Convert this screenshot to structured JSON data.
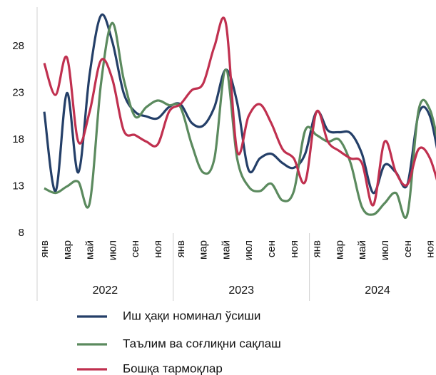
{
  "chart_data": {
    "type": "line",
    "categories": [
      "янв",
      null,
      "мар",
      null,
      "май",
      null,
      "июл",
      null,
      "сен",
      null,
      "ноя",
      null,
      "янв",
      null,
      "мар",
      null,
      "май",
      null,
      "июл",
      null,
      "сен",
      null,
      "ноя",
      null,
      "янв",
      null,
      "мар",
      null,
      "май",
      null,
      "июл",
      null,
      "сен",
      null,
      "ноя",
      null
    ],
    "groups": [
      "2022",
      "2023",
      "2024"
    ],
    "ylim": [
      8,
      32
    ],
    "yticks": [
      8,
      13,
      18,
      23,
      28
    ],
    "series": [
      {
        "name": "Иш ҳақи номинал ўсиши",
        "color": "#243f68",
        "values": [
          21,
          12.5,
          23,
          14.5,
          25,
          31.3,
          28.5,
          23,
          21,
          20.5,
          20.3,
          21.5,
          21.8,
          19.8,
          19.5,
          21.5,
          25.5,
          22,
          14.8,
          16,
          16.5,
          15.5,
          15,
          16.5,
          21,
          19,
          18.8,
          18.7,
          16.5,
          12.3,
          15.3,
          14.5,
          13.2,
          20.8,
          20.5,
          14.5
        ]
      },
      {
        "name": "Таълим ва соғлиқни сақлаш",
        "color": "#5b8a5e",
        "values": [
          12.8,
          12.3,
          13,
          13.5,
          11.2,
          24,
          30.5,
          24.5,
          20.5,
          21.5,
          22.2,
          21.7,
          21.5,
          17.5,
          14.5,
          16,
          25.5,
          16,
          13,
          12.5,
          13.3,
          11.5,
          12.5,
          19,
          18.5,
          17.8,
          18,
          15.5,
          10.8,
          10,
          11.2,
          12.3,
          10,
          21.2,
          21.2,
          16
        ]
      },
      {
        "name": "Бошқа тармоқлар",
        "color": "#c0304f",
        "values": [
          26.2,
          22.8,
          26.8,
          17.8,
          21,
          26.5,
          24.5,
          19,
          18.5,
          17.8,
          17.5,
          21,
          21.8,
          23.3,
          24,
          28,
          30.5,
          16.8,
          20.5,
          21.8,
          19.8,
          17,
          16,
          13.5,
          21,
          17.8,
          16.8,
          16,
          15.5,
          11,
          17.8,
          14.5,
          13.2,
          17,
          16,
          12
        ]
      }
    ]
  }
}
